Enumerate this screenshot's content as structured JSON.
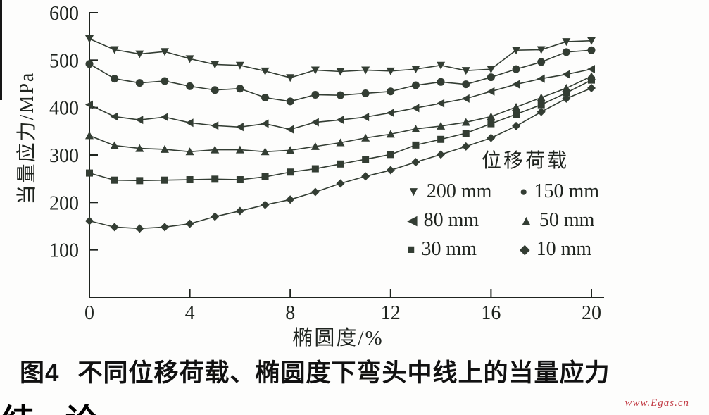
{
  "page": {
    "caption_label": "图4",
    "caption_text": "不同位移荷载、椭圆度下弯头中线上的当量应力",
    "clipped_heading": "结 论",
    "watermark": "www.Egas.cn"
  },
  "chart_data": {
    "type": "line",
    "title": "",
    "xlabel": "椭圆度/%",
    "ylabel": "当量应力/MPa",
    "xlim": [
      0,
      20
    ],
    "ylim": [
      0,
      600
    ],
    "xticks": [
      0,
      4,
      8,
      12,
      16,
      20
    ],
    "yticks": [
      100,
      200,
      300,
      400,
      500,
      600
    ],
    "grid": false,
    "legend_title": "位移荷载",
    "legend_position": "inside-right",
    "line_color": "#333d33",
    "axis_color": "#1f241f",
    "marker_glyphs": {
      "triangle-down": "▼",
      "circle": "●",
      "triangle-left": "◀",
      "triangle-up": "▲",
      "square": "■",
      "diamond": "◆"
    },
    "x": [
      0,
      1,
      2,
      3,
      4,
      5,
      6,
      7,
      8,
      9,
      10,
      11,
      12,
      13,
      14,
      15,
      16,
      17,
      18,
      19,
      20
    ],
    "series": [
      {
        "name": "200 mm",
        "marker": "triangle-down",
        "values": [
          545,
          522,
          513,
          518,
          503,
          491,
          489,
          477,
          463,
          479,
          476,
          479,
          477,
          481,
          489,
          478,
          481,
          521,
          522,
          539,
          541
        ]
      },
      {
        "name": "150 mm",
        "marker": "circle",
        "values": [
          492,
          461,
          452,
          456,
          445,
          437,
          440,
          421,
          413,
          427,
          426,
          430,
          434,
          447,
          454,
          449,
          464,
          481,
          496,
          517,
          521
        ]
      },
      {
        "name": "80 mm",
        "marker": "triangle-left",
        "values": [
          406,
          381,
          374,
          380,
          368,
          362,
          359,
          366,
          354,
          369,
          374,
          380,
          389,
          399,
          409,
          419,
          434,
          449,
          461,
          470,
          481
        ]
      },
      {
        "name": "50 mm",
        "marker": "triangle-up",
        "values": [
          341,
          320,
          314,
          312,
          307,
          311,
          311,
          307,
          310,
          318,
          326,
          336,
          344,
          355,
          361,
          369,
          381,
          401,
          421,
          441,
          466
        ]
      },
      {
        "name": "30 mm",
        "marker": "square",
        "values": [
          262,
          247,
          246,
          247,
          248,
          249,
          248,
          254,
          264,
          271,
          281,
          291,
          301,
          321,
          333,
          346,
          366,
          386,
          406,
          431,
          458
        ]
      },
      {
        "name": "10 mm",
        "marker": "diamond",
        "values": [
          161,
          148,
          145,
          148,
          155,
          170,
          182,
          195,
          206,
          222,
          240,
          255,
          268,
          285,
          301,
          318,
          336,
          361,
          391,
          419,
          441
        ]
      }
    ]
  }
}
